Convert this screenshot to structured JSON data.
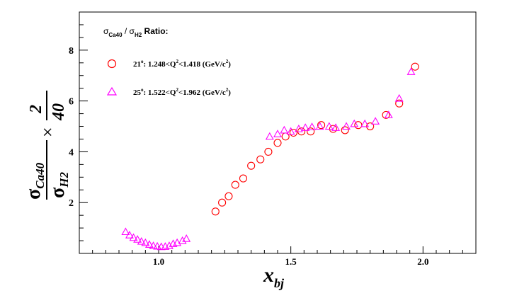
{
  "chart_data": {
    "type": "scatter",
    "title": "",
    "legend_header": {
      "base": "σ",
      "sub1": "Ca40",
      "sep": " / ",
      "base2": "σ",
      "sub2": "H2",
      "tail": " Ratio:"
    },
    "xlabel": {
      "base": "x",
      "sub": "bj"
    },
    "ylabel": {
      "num": "σ",
      "num_sub": "Ca40",
      "den": "σ",
      "den_sub": "H2",
      "times": "×",
      "frac_num": "2",
      "frac_den": "40"
    },
    "xlim": [
      0.7,
      2.2
    ],
    "ylim": [
      0,
      9.5
    ],
    "x_ticks": [
      {
        "value": 1.0,
        "label": "1.0"
      },
      {
        "value": 1.5,
        "label": "1.5"
      },
      {
        "value": 2.0,
        "label": "2.0"
      }
    ],
    "y_ticks": [
      {
        "value": 2,
        "label": "2"
      },
      {
        "value": 4,
        "label": "4"
      },
      {
        "value": 6,
        "label": "6"
      },
      {
        "value": 8,
        "label": "8"
      }
    ],
    "legend_position": "top-left",
    "grid": false,
    "series": [
      {
        "name_parts": {
          "angle": "21",
          "deg": "o",
          "lead": ": 1.248<Q",
          "qexp": "2",
          "mid": "<1.418 (GeV/c",
          "cexp": "2",
          "end": ")"
        },
        "marker": "circle",
        "color": "#ff0000",
        "points": [
          [
            1.215,
            1.65
          ],
          [
            1.24,
            2.0
          ],
          [
            1.265,
            2.25
          ],
          [
            1.29,
            2.7
          ],
          [
            1.32,
            2.95
          ],
          [
            1.35,
            3.45
          ],
          [
            1.385,
            3.7
          ],
          [
            1.415,
            4.0
          ],
          [
            1.45,
            4.35
          ],
          [
            1.48,
            4.6
          ],
          [
            1.51,
            4.75
          ],
          [
            1.54,
            4.8
          ],
          [
            1.575,
            4.8
          ],
          [
            1.615,
            5.05
          ],
          [
            1.66,
            4.9
          ],
          [
            1.705,
            4.85
          ],
          [
            1.755,
            5.05
          ],
          [
            1.8,
            5.0
          ],
          [
            1.86,
            5.45
          ],
          [
            1.91,
            5.9
          ],
          [
            1.97,
            7.35
          ]
        ]
      },
      {
        "name_parts": {
          "angle": "25",
          "deg": "o",
          "lead": ": 1.522<Q",
          "qexp": "2",
          "mid": "<1.962 (GeV/c",
          "cexp": "2",
          "end": ")"
        },
        "marker": "triangle",
        "color": "#ff00ff",
        "points": [
          [
            0.875,
            0.85
          ],
          [
            0.89,
            0.72
          ],
          [
            0.905,
            0.62
          ],
          [
            0.92,
            0.55
          ],
          [
            0.935,
            0.47
          ],
          [
            0.95,
            0.42
          ],
          [
            0.965,
            0.35
          ],
          [
            0.98,
            0.3
          ],
          [
            0.995,
            0.28
          ],
          [
            1.01,
            0.26
          ],
          [
            1.025,
            0.27
          ],
          [
            1.04,
            0.3
          ],
          [
            1.055,
            0.38
          ],
          [
            1.07,
            0.42
          ],
          [
            1.09,
            0.5
          ],
          [
            1.105,
            0.58
          ],
          [
            1.42,
            4.6
          ],
          [
            1.45,
            4.7
          ],
          [
            1.475,
            4.85
          ],
          [
            1.5,
            4.8
          ],
          [
            1.53,
            4.9
          ],
          [
            1.555,
            4.95
          ],
          [
            1.58,
            4.98
          ],
          [
            1.61,
            5.0
          ],
          [
            1.645,
            5.0
          ],
          [
            1.67,
            4.95
          ],
          [
            1.71,
            5.0
          ],
          [
            1.74,
            5.1
          ],
          [
            1.78,
            5.1
          ],
          [
            1.82,
            5.2
          ],
          [
            1.87,
            5.45
          ],
          [
            1.91,
            6.1
          ],
          [
            1.955,
            7.15
          ]
        ]
      }
    ]
  }
}
